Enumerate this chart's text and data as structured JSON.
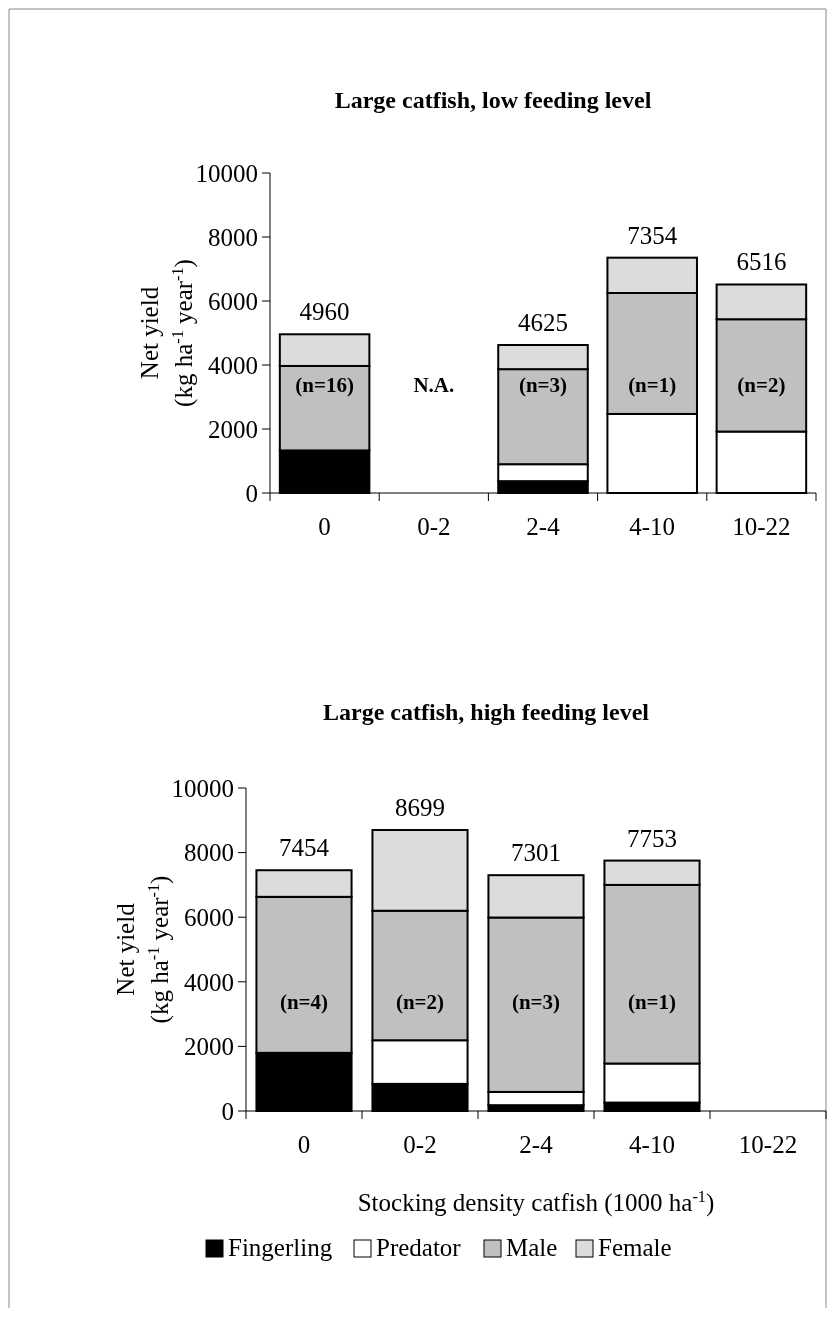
{
  "chart_data": [
    {
      "type": "bar",
      "title": "Large catfish, low feeding level",
      "ylabel": "Net yield\n(kg ha$^{-1}$ year$^{-1}$)",
      "categories": [
        "0",
        "0-2",
        "2-4",
        "4-10",
        "10-22"
      ],
      "stacked": true,
      "ylim": [
        0,
        10000
      ],
      "yticks": [
        0,
        2000,
        4000,
        6000,
        8000,
        10000
      ],
      "grid": false,
      "legend": false,
      "series": [
        {
          "color": "#000000",
          "values": [
            1330,
            null,
            370,
            0,
            0
          ]
        },
        {
          "color": "#ffffff",
          "values": [
            0,
            null,
            530,
            2470,
            1920
          ]
        },
        {
          "color": "#c0c0c0",
          "values": [
            2640,
            null,
            2970,
            3780,
            3510
          ]
        },
        {
          "color": "#dcdcdc",
          "values": [
            990,
            null,
            755,
            1104,
            1086
          ]
        }
      ],
      "totals": [
        "4960",
        null,
        "4625",
        "7354",
        "6516"
      ],
      "annotations": [
        "(n=16)",
        "N.A.",
        "(n=3)",
        "(n=1)",
        "(n=2)"
      ]
    },
    {
      "type": "bar",
      "title": "Large catfish, high feeding level",
      "xlabel": "Stocking density catfish (1000 ha$^{-1}$)",
      "ylabel": "Net yield\n(kg ha$^{-1}$ year$^{-1}$)",
      "categories": [
        "0",
        "0-2",
        "2-4",
        "4-10",
        "10-22"
      ],
      "stacked": true,
      "ylim": [
        0,
        10000
      ],
      "yticks": [
        0,
        2000,
        4000,
        6000,
        8000,
        10000
      ],
      "grid": false,
      "legend": "bottom",
      "series": [
        {
          "name": "Fingerling",
          "color": "#000000",
          "values": [
            1800,
            840,
            180,
            260,
            null
          ]
        },
        {
          "name": "Predator",
          "color": "#ffffff",
          "values": [
            0,
            1350,
            410,
            1210,
            null
          ]
        },
        {
          "name": "Male",
          "color": "#c0c0c0",
          "values": [
            4830,
            4010,
            5400,
            5530,
            null
          ]
        },
        {
          "name": "Female",
          "color": "#dcdcdc",
          "values": [
            824,
            2499,
            1311,
            753,
            null
          ]
        }
      ],
      "totals": [
        "7454",
        "8699",
        "7301",
        "7753",
        null
      ],
      "annotations": [
        "(n=4)",
        "(n=2)",
        "(n=3)",
        "(n=1)"
      ]
    }
  ]
}
